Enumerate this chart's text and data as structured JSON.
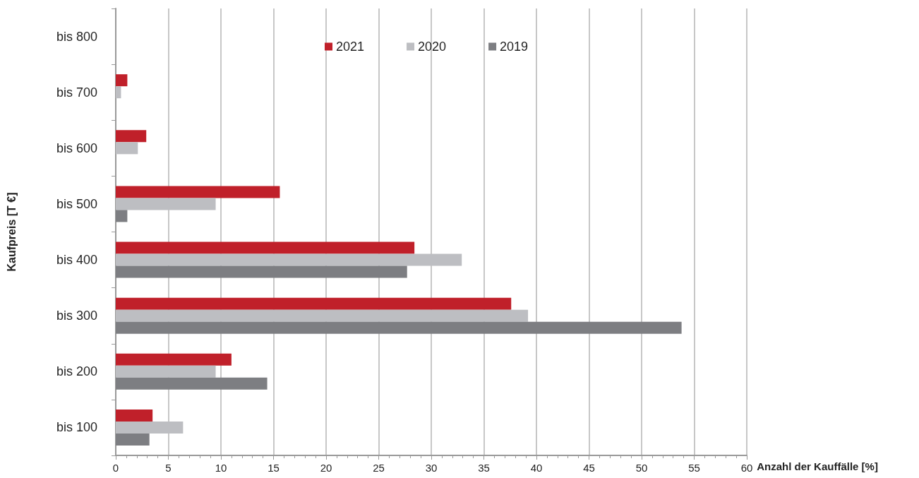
{
  "chart_data": {
    "type": "bar",
    "orientation": "horizontal",
    "xlabel": "Anzahl der Kauffälle [%]",
    "ylabel": "Kaufpreis [T €]",
    "categories": [
      "bis 800",
      "bis 700",
      "bis 600",
      "bis 500",
      "bis 400",
      "bis 300",
      "bis 200",
      "bis 100"
    ],
    "series": [
      {
        "name": "2021",
        "color": "#c0202a",
        "values": [
          null,
          1.1,
          2.9,
          15.6,
          28.4,
          37.6,
          11.0,
          3.5
        ]
      },
      {
        "name": "2020",
        "color": "#bdbec2",
        "values": [
          null,
          0.5,
          2.1,
          9.5,
          32.9,
          39.2,
          9.5,
          6.4
        ]
      },
      {
        "name": "2019",
        "color": "#7d7e82",
        "values": [
          null,
          null,
          null,
          1.1,
          27.7,
          53.8,
          14.4,
          3.2
        ]
      }
    ],
    "xlim": [
      0,
      60
    ],
    "xticks": [
      0,
      5,
      10,
      15,
      20,
      25,
      30,
      35,
      40,
      45,
      50,
      55,
      60
    ],
    "grid": "x",
    "legend": "top"
  }
}
